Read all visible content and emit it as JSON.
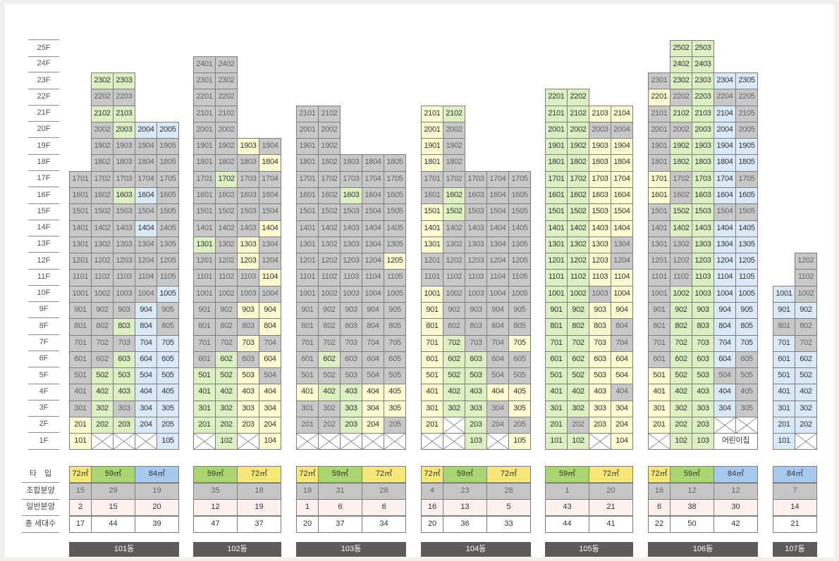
{
  "floor_labels": [
    "25F",
    "24F",
    "23F",
    "22F",
    "21F",
    "20F",
    "19F",
    "18F",
    "17F",
    "16F",
    "15F",
    "14F",
    "13F",
    "12F",
    "11F",
    "10F",
    "9F",
    "8F",
    "7F",
    "6F",
    "5F",
    "4F",
    "3F",
    "2F",
    "1F"
  ],
  "summary_row_labels": [
    "타　입",
    "조합분양",
    "일반분양",
    "총 세대수"
  ],
  "legend": {
    "types": {
      "72㎡": "#f5e878",
      "59㎡": "#a9d66e",
      "84㎡": "#a8c9ee"
    },
    "status": {
      "gray": "#c8c8c8",
      "green": "#dcf0c2",
      "yellow": "#fffbd1",
      "blue": "#dae9f8",
      "white": "#ffffff"
    }
  },
  "buildings": [
    {
      "name": "101동",
      "cols": 5,
      "floors": [
        "g1701,g1702,g1703,g1704,g1705",
        "g1601,g1602,G1603,B1604,g1605",
        "g1501,g1502,g1503,g1504,g1505",
        "g1401,g1402,g1403,B1404,g1405",
        "g1301,g1302,g1303,g1304,g1305",
        "g1201,g1202,g1203,g1204,g1205",
        "g1101,g1102,g1103,g1104,g1105",
        "g1001,g1002,g1003,g1004,B1005",
        "g901,g902,g903,B904,g905",
        "g801,g802,G803,B804,g805",
        "g701,g702,g703,B704,B705",
        "g601,g602,G603,B604,B605",
        "g501,G502,G503,B504,B505",
        "g401,G402,G403,B404,B405",
        "g301,G302,g303,B304,B305",
        "Y201,G202,G203,B204,B205",
        "Y101,X,X,X,B105"
      ],
      "upper": [
        {
          "floor": "23F",
          "cells": [
            "",
            "G2302",
            "G2303",
            "",
            ""
          ]
        },
        {
          "floor": "22F",
          "cells": [
            "",
            "g2202",
            "g2203",
            "",
            ""
          ]
        },
        {
          "floor": "21F",
          "cells": [
            "",
            "G2102",
            "G2103",
            "",
            ""
          ]
        },
        {
          "floor": "20F",
          "cells": [
            "",
            "g2002",
            "G2003",
            "B2004",
            "B2005"
          ]
        },
        {
          "floor": "19F",
          "cells": [
            "",
            "g1902",
            "g1903",
            "g1904",
            "g1905"
          ]
        },
        {
          "floor": "18F",
          "cells": [
            "",
            "g1802",
            "g1803",
            "g1804",
            "g1805"
          ]
        }
      ],
      "types": [
        {
          "label": "72㎡",
          "span": 1,
          "cls": "tY"
        },
        {
          "label": "59㎡",
          "span": 2,
          "cls": "tG"
        },
        {
          "label": "84㎡",
          "span": 2,
          "cls": "tB"
        }
      ],
      "johap": [
        "15",
        "29",
        "19"
      ],
      "ilban": [
        "2",
        "15",
        "20"
      ],
      "total": [
        "17",
        "44",
        "39"
      ]
    },
    {
      "name": "102동",
      "cols": 4,
      "floors": [
        "g1701,G1702,g1703,g1704",
        "g1601,g1602,g1603,g1604",
        "g1501,g1502,g1503,g1504",
        "g1401,g1402,g1403,Y1404",
        "G1301,g1302,Y1303,g1304",
        "g1201,g1202,Y1203,g1204",
        "g1101,g1102,g1103,Y1104",
        "g1001,g1002,g1003,g1004",
        "g901,g902,Y903,Y904",
        "g801,g802,g803,Y804",
        "g701,g702,Y703,g704",
        "g601,G602,g603,Y604",
        "G501,G502,Y503,g504",
        "G401,G402,Y403,Y404",
        "G301,G302,Y303,Y304",
        "G201,G202,Y203,Y204",
        "X,G102,X,Y104"
      ],
      "upper": [
        {
          "floor": "24F",
          "cells": [
            "g2401",
            "g2402",
            "",
            ""
          ]
        },
        {
          "floor": "23F",
          "cells": [
            "g2301",
            "g2302",
            "",
            ""
          ]
        },
        {
          "floor": "22F",
          "cells": [
            "g2201",
            "g2202",
            "",
            ""
          ]
        },
        {
          "floor": "21F",
          "cells": [
            "g2101",
            "g2102",
            "",
            ""
          ]
        },
        {
          "floor": "20F",
          "cells": [
            "g2001",
            "g2002",
            "",
            ""
          ]
        },
        {
          "floor": "19F",
          "cells": [
            "g1901",
            "g1902",
            "Y1903",
            "g1904"
          ]
        },
        {
          "floor": "18F",
          "cells": [
            "g1801",
            "g1802",
            "g1803",
            "Y1804"
          ]
        }
      ],
      "types": [
        {
          "label": "59㎡",
          "span": 2,
          "cls": "tG"
        },
        {
          "label": "72㎡",
          "span": 2,
          "cls": "tY"
        }
      ],
      "johap": [
        "35",
        "18"
      ],
      "ilban": [
        "12",
        "19"
      ],
      "total": [
        "47",
        "37"
      ]
    },
    {
      "name": "103동",
      "cols": 5,
      "floors": [
        "g1701,g1702,g1703,g1704,g1705",
        "g1601,g1602,G1603,g1604,g1605",
        "g1501,g1502,g1503,g1504,g1505",
        "g1401,g1402,g1403,g1404,g1405",
        "g1301,g1302,g1303,g1304,g1305",
        "g1201,g1202,g1203,g1204,Y1205",
        "g1101,g1102,g1103,g1104,g1105",
        "g1001,g1002,g1003,g1004,g1005",
        "g901,g902,g903,g904,g905",
        "g801,g802,g803,g804,g805",
        "g701,g702,g703,g704,g705",
        "g601,G602,g603,g604,g605",
        "g501,g502,g503,g504,g505",
        "Y401,G402,G403,Y404,Y405",
        "g301,g302,G303,Y304,Y305",
        "g201,g202,G203,Y204,g205",
        "X,X,X,X,X"
      ],
      "upper": [
        {
          "floor": "21F",
          "cells": [
            "g2101",
            "g2102",
            "",
            "",
            ""
          ]
        },
        {
          "floor": "20F",
          "cells": [
            "g2001",
            "g2002",
            "",
            "",
            ""
          ]
        },
        {
          "floor": "19F",
          "cells": [
            "g1901",
            "g1902",
            "",
            "",
            ""
          ]
        },
        {
          "floor": "18F",
          "cells": [
            "g1801",
            "g1802",
            "g1803",
            "g1804",
            "g1805"
          ]
        }
      ],
      "types": [
        {
          "label": "72㎡",
          "span": 1,
          "cls": "tY"
        },
        {
          "label": "59㎡",
          "span": 2,
          "cls": "tG"
        },
        {
          "label": "72㎡",
          "span": 2,
          "cls": "tY"
        }
      ],
      "johap": [
        "19",
        "31",
        "28"
      ],
      "ilban": [
        "1",
        "6",
        "6"
      ],
      "total": [
        "20",
        "37",
        "34"
      ]
    },
    {
      "name": "104동",
      "cols": 5,
      "floors": [
        "g1701,g1702,g1703,g1704,g1705",
        "g1601,G1602,g1603,g1604,g1605",
        "Y1501,G1502,g1503,g1504,g1505",
        "Y1401,g1402,g1403,g1404,g1405",
        "Y1301,g1302,g1303,g1304,g1305",
        "g1201,g1202,g1203,g1204,g1205",
        "g1101,g1102,g1103,g1104,g1105",
        "Y1001,g1002,g1003,g1004,g1005",
        "Y901,g902,g903,g904,g905",
        "Y801,g802,g803,g804,g805",
        "Y701,G702,g703,g704,Y705",
        "Y601,G602,G603,g604,g605",
        "Y501,G502,G503,g504,g505",
        "Y401,G402,G403,Y404,Y405",
        "Y301,G302,G303,g304,Y305",
        "Y201,X,G203,g204,g205",
        "X,X,G103,X,Y105"
      ],
      "upper": [
        {
          "floor": "21F",
          "cells": [
            "Y2101",
            "G2102",
            "",
            "",
            ""
          ]
        },
        {
          "floor": "20F",
          "cells": [
            "Y2001",
            "g2002",
            "",
            "",
            ""
          ]
        },
        {
          "floor": "19F",
          "cells": [
            "Y1901",
            "g1902",
            "",
            "",
            ""
          ]
        },
        {
          "floor": "18F",
          "cells": [
            "Y1801",
            "g1802",
            "",
            "",
            ""
          ]
        }
      ],
      "types": [
        {
          "label": "72㎡",
          "span": 1,
          "cls": "tY"
        },
        {
          "label": "59㎡",
          "span": 2,
          "cls": "tG"
        },
        {
          "label": "72㎡",
          "span": 2,
          "cls": "tY"
        }
      ],
      "johap": [
        "4",
        "23",
        "28"
      ],
      "ilban": [
        "16",
        "13",
        "5"
      ],
      "total": [
        "20",
        "36",
        "33"
      ]
    },
    {
      "name": "105동",
      "cols": 4,
      "floors": [
        "G1701,G1702,Y1703,Y1704",
        "G1601,G1602,Y1603,Y1604",
        "G1501,G1502,Y1503,Y1504",
        "G1401,G1402,Y1403,Y1404",
        "G1301,G1302,Y1303,g1304",
        "G1201,G1202,Y1203,g1204",
        "G1101,G1102,Y1103,Y1104",
        "G1001,G1002,g1003,Y1004",
        "G901,G902,Y903,Y904",
        "G801,G802,Y803,g804",
        "G701,G702,Y703,g704",
        "G601,G602,Y603,Y604",
        "G501,G502,Y503,Y504",
        "G401,G402,Y403,g404",
        "G301,G302,Y303,Y304",
        "G201,g202,Y203,Y204",
        "G101,G102,X,Y104"
      ],
      "upper": [
        {
          "floor": "22F",
          "cells": [
            "G2201",
            "G2202",
            "",
            ""
          ]
        },
        {
          "floor": "21F",
          "cells": [
            "G2101",
            "G2102",
            "Y2103",
            "Y2104"
          ]
        },
        {
          "floor": "20F",
          "cells": [
            "G2001",
            "G2002",
            "g2003",
            "g2004"
          ]
        },
        {
          "floor": "19F",
          "cells": [
            "G1901",
            "G1902",
            "Y1903",
            "Y1904"
          ]
        },
        {
          "floor": "18F",
          "cells": [
            "G1801",
            "G1802",
            "Y1803",
            "Y1804"
          ]
        }
      ],
      "types": [
        {
          "label": "59㎡",
          "span": 2,
          "cls": "tG"
        },
        {
          "label": "72㎡",
          "span": 2,
          "cls": "tY"
        }
      ],
      "johap": [
        "1",
        "20"
      ],
      "ilban": [
        "43",
        "21"
      ],
      "total": [
        "44",
        "41"
      ]
    },
    {
      "name": "106동",
      "cols": 5,
      "floors": [
        "Y1701,g1702,G1703,B1704,g1705",
        "Y1601,g1602,G1603,B1604,B1605",
        "g1501,G1502,G1503,g1504,g1505",
        "g1401,G1402,G1403,B1404,B1405",
        "g1301,g1302,G1303,B1304,B1305",
        "g1201,g1202,G1203,B1204,B1205",
        "g1101,g1102,G1103,B1104,B1105",
        "g1001,G1002,G1003,B1004,B1005",
        "g901,G902,G903,B904,B905",
        "g801,G802,G803,B804,B805",
        "g701,G702,G703,B704,B705",
        "g601,G602,G603,B604,g605",
        "Y501,G502,G503,g504,g505",
        "Y401,G402,G403,B404,g405",
        "Y301,G302,G303,B304,g305",
        "Y201,G202,G203,X,X",
        "X,G102,G103,S어린이집:2"
      ],
      "upper": [
        {
          "floor": "25F",
          "cells": [
            "",
            "G2502",
            "G2503",
            "",
            ""
          ]
        },
        {
          "floor": "24F",
          "cells": [
            "",
            "G2402",
            "G2403",
            "",
            ""
          ]
        },
        {
          "floor": "23F",
          "cells": [
            "g2301",
            "G2302",
            "G2303",
            "B2304",
            "B2305"
          ]
        },
        {
          "floor": "22F",
          "cells": [
            "Y2201",
            "g2202",
            "G2203",
            "g2204",
            "g2205"
          ]
        },
        {
          "floor": "21F",
          "cells": [
            "g2101",
            "G2102",
            "G2103",
            "B2104",
            "g2105"
          ]
        },
        {
          "floor": "20F",
          "cells": [
            "g2001",
            "g2002",
            "G2003",
            "B2004",
            "g2005"
          ]
        },
        {
          "floor": "19F",
          "cells": [
            "g1901",
            "G1902",
            "G1903",
            "B1904",
            "B1905"
          ]
        },
        {
          "floor": "18F",
          "cells": [
            "g1801",
            "G1802",
            "G1803",
            "B1804",
            "B1805"
          ]
        }
      ],
      "types": [
        {
          "label": "72㎡",
          "span": 1,
          "cls": "tY"
        },
        {
          "label": "59㎡",
          "span": 2,
          "cls": "tG"
        },
        {
          "label": "84㎡",
          "span": 2,
          "cls": "tB"
        }
      ],
      "johap": [
        "16",
        "12",
        "12"
      ],
      "ilban": [
        "6",
        "38",
        "30"
      ],
      "total": [
        "22",
        "50",
        "42"
      ]
    },
    {
      "name": "107동",
      "cols": 2,
      "floors": [
        "",
        "",
        "",
        "",
        "",
        "g1202",
        "g1102",
        "B1001,g1002",
        "B901,B902",
        "g801,g802",
        "B701,g702",
        "B601,B602",
        "B501,B502",
        "B401,B402",
        "B301,B302",
        "B201,B202",
        "B101,X"
      ],
      "upper": [],
      "types": [
        {
          "label": "84㎡",
          "span": 2,
          "cls": "tB"
        }
      ],
      "johap": [
        "7"
      ],
      "ilban": [
        "14"
      ],
      "total": [
        "21"
      ]
    }
  ]
}
